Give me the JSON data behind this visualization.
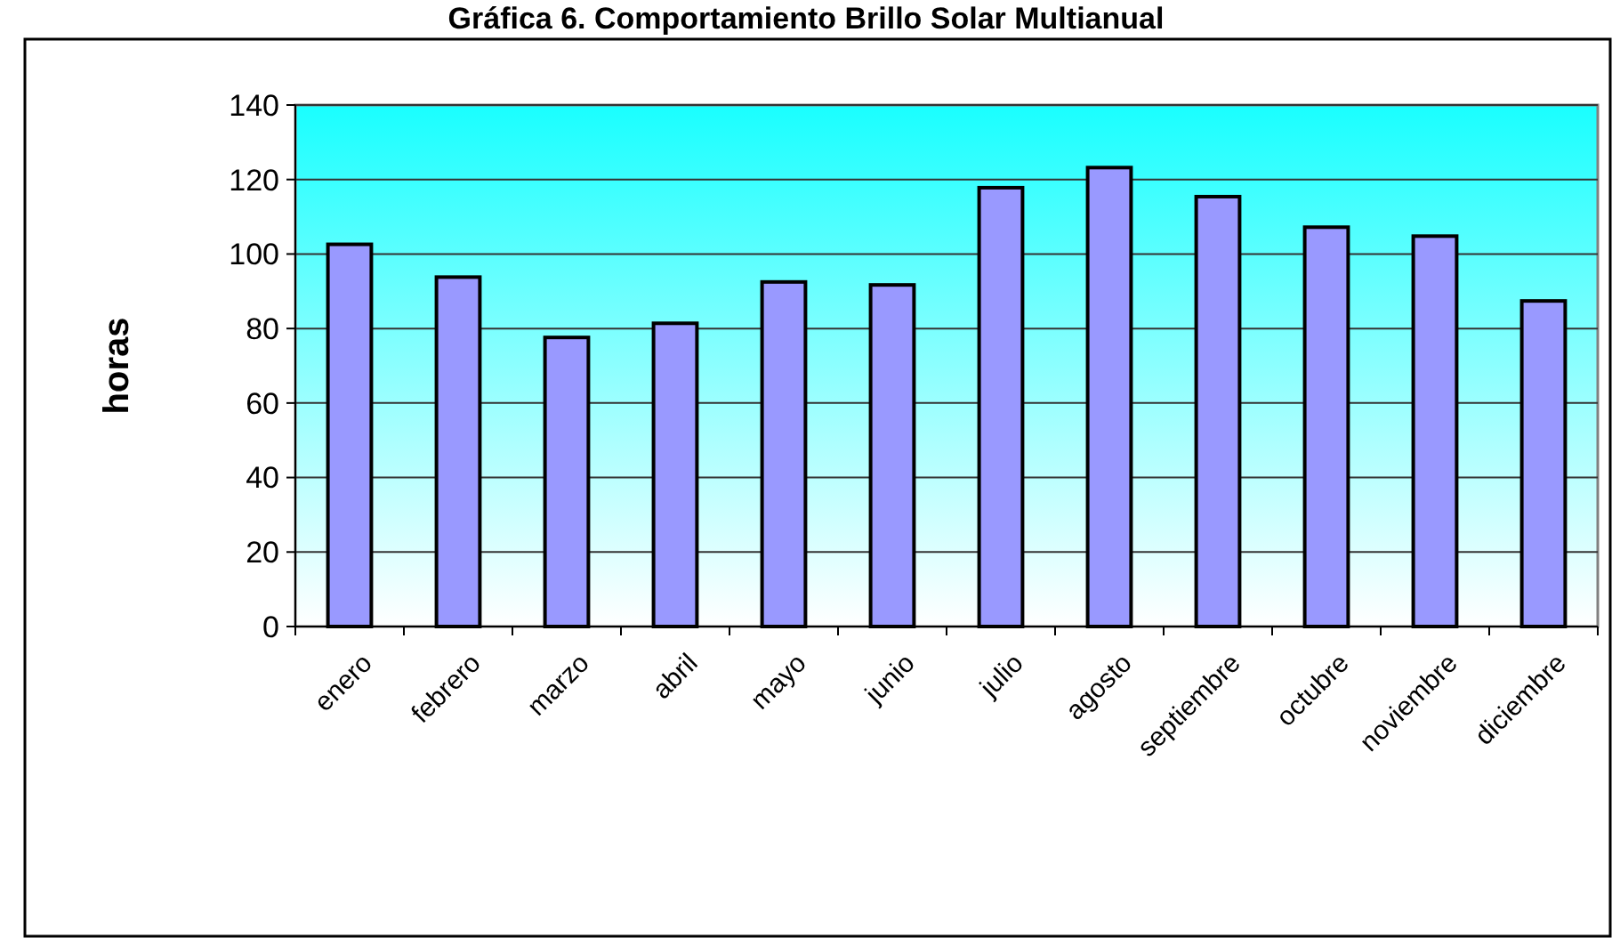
{
  "chart_data": {
    "type": "bar",
    "title": "Gráfica 6.  Comportamiento Brillo Solar  Multianual",
    "ylabel": "horas",
    "categories": [
      "enero",
      "febrero",
      "marzo",
      "abril",
      "mayo",
      "junio",
      "julio",
      "agosto",
      "septiembre",
      "octubre",
      "noviembre",
      "diciembre"
    ],
    "values": [
      102.6,
      93.8,
      77.6,
      81.4,
      92.5,
      91.7,
      117.8,
      123.2,
      115.4,
      107.2,
      104.8,
      87.4
    ],
    "color": "#9999ff",
    "ylim": [
      0,
      140
    ],
    "yticks": [
      0,
      20,
      40,
      60,
      80,
      100,
      120,
      140
    ],
    "grid": "y"
  }
}
